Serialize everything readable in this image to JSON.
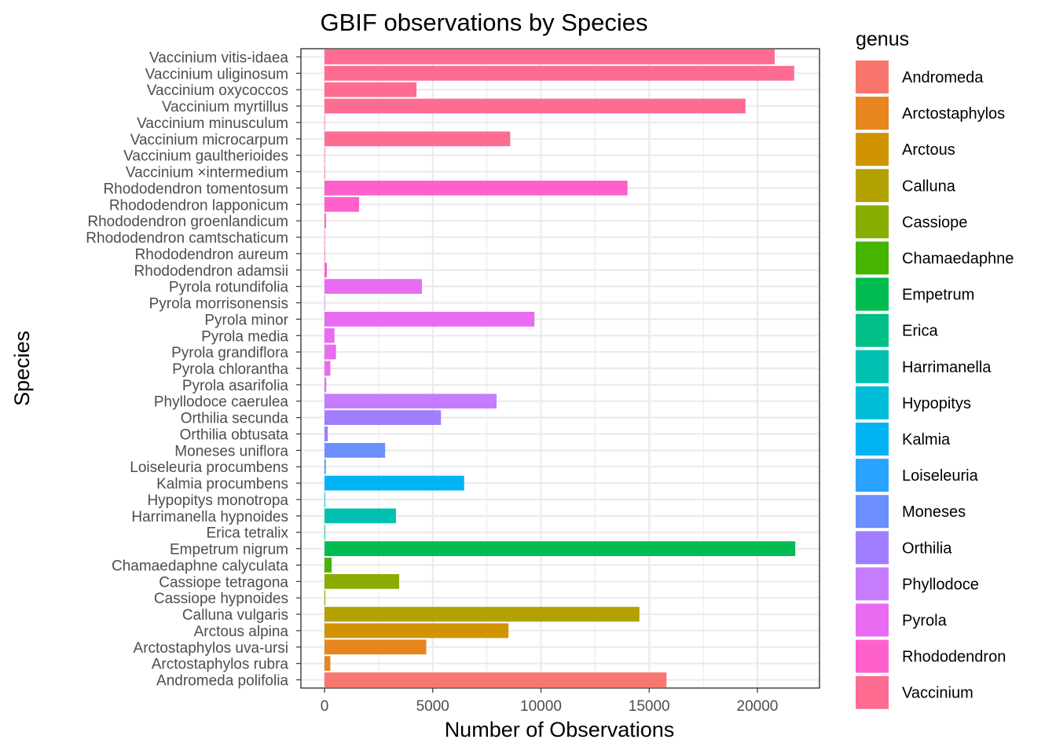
{
  "chart_data": {
    "type": "bar",
    "orientation": "horizontal",
    "title": "GBIF observations by Species",
    "xlabel": "Number of Observations",
    "ylabel": "Species",
    "xlim": [
      -1090,
      22870
    ],
    "xticks": [
      0,
      5000,
      10000,
      15000,
      20000
    ],
    "grid": true,
    "legend": {
      "title": "genus",
      "position": "right"
    },
    "genera": [
      {
        "name": "Andromeda",
        "color": "#F8766D"
      },
      {
        "name": "Arctostaphylos",
        "color": "#E7851E"
      },
      {
        "name": "Arctous",
        "color": "#D09400"
      },
      {
        "name": "Calluna",
        "color": "#B2A100"
      },
      {
        "name": "Cassiope",
        "color": "#89AC00"
      },
      {
        "name": "Chamaedaphne",
        "color": "#45B500"
      },
      {
        "name": "Empetrum",
        "color": "#00BC51"
      },
      {
        "name": "Erica",
        "color": "#00C087"
      },
      {
        "name": "Harrimanella",
        "color": "#00C0B2"
      },
      {
        "name": "Hypopitys",
        "color": "#00BCD6"
      },
      {
        "name": "Kalmia",
        "color": "#00B3F2"
      },
      {
        "name": "Loiseleuria",
        "color": "#29A3FF"
      },
      {
        "name": "Moneses",
        "color": "#6B8FFF"
      },
      {
        "name": "Orthilia",
        "color": "#A07DFF"
      },
      {
        "name": "Phyllodoce",
        "color": "#C77CFF"
      },
      {
        "name": "Pyrola",
        "color": "#E86BF2"
      },
      {
        "name": "Rhododendron",
        "color": "#FF61CC"
      },
      {
        "name": "Vaccinium",
        "color": "#FF6C91"
      }
    ],
    "bars": [
      {
        "species": "Andromeda polifolia",
        "genus": "Andromeda",
        "value": 15800
      },
      {
        "species": "Arctostaphylos rubra",
        "genus": "Arctostaphylos",
        "value": 270
      },
      {
        "species": "Arctostaphylos uva-ursi",
        "genus": "Arctostaphylos",
        "value": 4700
      },
      {
        "species": "Arctous alpina",
        "genus": "Arctous",
        "value": 8500
      },
      {
        "species": "Calluna vulgaris",
        "genus": "Calluna",
        "value": 14550
      },
      {
        "species": "Cassiope hypnoides",
        "genus": "Cassiope",
        "value": 40
      },
      {
        "species": "Cassiope tetragona",
        "genus": "Cassiope",
        "value": 3450
      },
      {
        "species": "Chamaedaphne calyculata",
        "genus": "Chamaedaphne",
        "value": 330
      },
      {
        "species": "Empetrum nigrum",
        "genus": "Empetrum",
        "value": 21750
      },
      {
        "species": "Erica tetralix",
        "genus": "Erica",
        "value": 30
      },
      {
        "species": "Harrimanella hypnoides",
        "genus": "Harrimanella",
        "value": 3300
      },
      {
        "species": "Hypopitys monotropa",
        "genus": "Hypopitys",
        "value": 30
      },
      {
        "species": "Kalmia procumbens",
        "genus": "Kalmia",
        "value": 6450
      },
      {
        "species": "Loiseleuria procumbens",
        "genus": "Loiseleuria",
        "value": 60
      },
      {
        "species": "Moneses uniflora",
        "genus": "Moneses",
        "value": 2800
      },
      {
        "species": "Orthilia obtusata",
        "genus": "Orthilia",
        "value": 150
      },
      {
        "species": "Orthilia secunda",
        "genus": "Orthilia",
        "value": 5380
      },
      {
        "species": "Phyllodoce caerulea",
        "genus": "Phyllodoce",
        "value": 7950
      },
      {
        "species": "Pyrola asarifolia",
        "genus": "Pyrola",
        "value": 80
      },
      {
        "species": "Pyrola chlorantha",
        "genus": "Pyrola",
        "value": 270
      },
      {
        "species": "Pyrola grandiflora",
        "genus": "Pyrola",
        "value": 530
      },
      {
        "species": "Pyrola media",
        "genus": "Pyrola",
        "value": 460
      },
      {
        "species": "Pyrola minor",
        "genus": "Pyrola",
        "value": 9700
      },
      {
        "species": "Pyrola morrisonensis",
        "genus": "Pyrola",
        "value": 5
      },
      {
        "species": "Pyrola rotundifolia",
        "genus": "Pyrola",
        "value": 4500
      },
      {
        "species": "Rhododendron adamsii",
        "genus": "Rhododendron",
        "value": 110
      },
      {
        "species": "Rhododendron aureum",
        "genus": "Rhododendron",
        "value": 25
      },
      {
        "species": "Rhododendron camtschaticum",
        "genus": "Rhododendron",
        "value": 10
      },
      {
        "species": "Rhododendron groenlandicum",
        "genus": "Rhododendron",
        "value": 70
      },
      {
        "species": "Rhododendron lapponicum",
        "genus": "Rhododendron",
        "value": 1600
      },
      {
        "species": "Rhododendron tomentosum",
        "genus": "Rhododendron",
        "value": 14000
      },
      {
        "species": "Vaccinium ×intermedium",
        "genus": "Vaccinium",
        "value": 25
      },
      {
        "species": "Vaccinium gaultherioides",
        "genus": "Vaccinium",
        "value": 20
      },
      {
        "species": "Vaccinium microcarpum",
        "genus": "Vaccinium",
        "value": 8580
      },
      {
        "species": "Vaccinium minusculum",
        "genus": "Vaccinium",
        "value": 20
      },
      {
        "species": "Vaccinium myrtillus",
        "genus": "Vaccinium",
        "value": 19450
      },
      {
        "species": "Vaccinium oxycoccos",
        "genus": "Vaccinium",
        "value": 4250
      },
      {
        "species": "Vaccinium uliginosum",
        "genus": "Vaccinium",
        "value": 21700
      },
      {
        "species": "Vaccinium vitis-idaea",
        "genus": "Vaccinium",
        "value": 20800
      }
    ]
  }
}
